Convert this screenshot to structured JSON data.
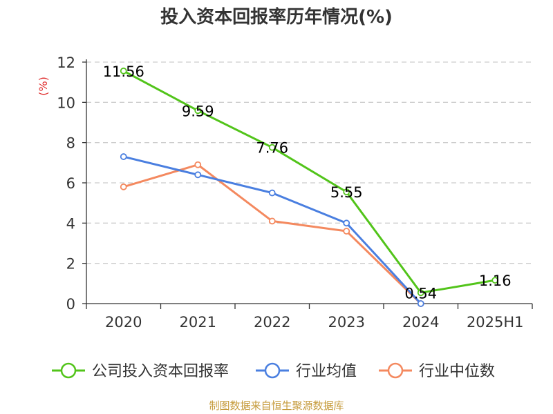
{
  "chart_data": {
    "type": "line",
    "title": "投入资本回报率历年情况(%)",
    "ylabel": "(%)",
    "xlabel": "",
    "categories": [
      "2020",
      "2021",
      "2022",
      "2023",
      "2024",
      "2025H1"
    ],
    "ylim": [
      0,
      12
    ],
    "yticks": [
      "0",
      "2",
      "4",
      "6",
      "8",
      "10",
      "12"
    ],
    "grid": true,
    "legend_position": "bottom",
    "series": [
      {
        "name": "公司投入资本回报率",
        "color": "#52c41a",
        "values": [
          11.56,
          9.59,
          7.76,
          5.55,
          0.54,
          1.16
        ],
        "labels": [
          "11.56",
          "9.59",
          "7.76",
          "5.55",
          "0.54",
          "1.16"
        ]
      },
      {
        "name": "行业均值",
        "color": "#4a7fe0",
        "values": [
          7.3,
          6.4,
          5.5,
          4.0,
          0.0,
          null
        ]
      },
      {
        "name": "行业中位数",
        "color": "#f4895f",
        "values": [
          5.8,
          6.9,
          4.1,
          3.6,
          0.0,
          null
        ]
      }
    ],
    "source": "制图数据来自恒生聚源数据库"
  }
}
